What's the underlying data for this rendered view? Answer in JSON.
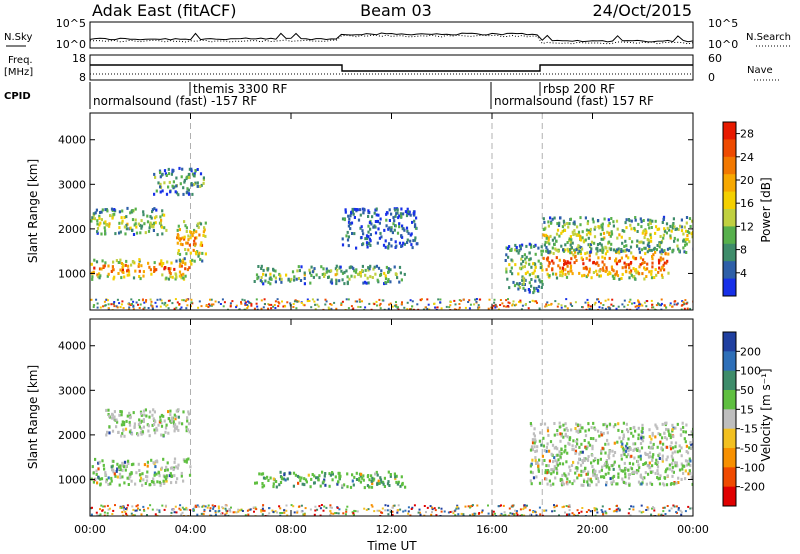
{
  "header": {
    "station": "Adak East (fitACF)",
    "beam": "Beam 03",
    "date": "24/Oct/2015"
  },
  "strips": {
    "nsky_label": "N.Sky",
    "nsearch_label": "N.Search",
    "freq_label_1": "Freq.",
    "freq_label_2": "[MHz]",
    "nave_label": "Nave",
    "cpid_label": "CPID",
    "nsky_ticks": [
      "10^5",
      "10^0"
    ],
    "nsearch_ticks": [
      "10^5",
      "10^0"
    ],
    "freq_ticks": [
      "18",
      "8"
    ],
    "nave_ticks": [
      "60",
      "0"
    ],
    "cpid_segments": [
      {
        "label": "normalsound (fast) -157 RF",
        "start": 0.0,
        "end": 15.9
      },
      {
        "label": "themis 3300 RF",
        "start": 4.0,
        "end": 15.9
      },
      {
        "label": "normalsound (fast) 157 RF",
        "start": 15.9,
        "end": 24.0
      },
      {
        "label": "rbsp 200 RF",
        "start": 18.0,
        "end": 24.0
      }
    ]
  },
  "chart_data": [
    {
      "type": "heatmap",
      "name": "power",
      "ylabel": "Slant Range [km]",
      "yticks": [
        "1000",
        "2000",
        "3000",
        "4000"
      ],
      "ylim": [
        180,
        4600
      ],
      "xlim": [
        0,
        24
      ],
      "colorbar_label": "Power [dB]",
      "colorbar_ticks": [
        "4",
        "8",
        "12",
        "16",
        "20",
        "24",
        "28"
      ],
      "colorscale": [
        "#1730e8",
        "#2e5fa8",
        "#3e8c6a",
        "#57b04c",
        "#c0d040",
        "#f4d000",
        "#f7a800",
        "#f27800",
        "#ee4a00",
        "#e81a00"
      ],
      "features": [
        {
          "t0": 0.0,
          "t1": 4.0,
          "r0": 900,
          "r1": 1350,
          "level": 0.85
        },
        {
          "t0": 3.4,
          "t1": 4.6,
          "r0": 1300,
          "r1": 2200,
          "level": 0.75
        },
        {
          "t0": 0.0,
          "t1": 3.0,
          "r0": 1900,
          "r1": 2500,
          "level": 0.5
        },
        {
          "t0": 2.5,
          "t1": 4.5,
          "r0": 2800,
          "r1": 3400,
          "level": 0.35
        },
        {
          "t0": 6.5,
          "t1": 12.5,
          "r0": 800,
          "r1": 1200,
          "level": 0.45
        },
        {
          "t0": 10.0,
          "t1": 13.0,
          "r0": 1600,
          "r1": 2500,
          "level": 0.2
        },
        {
          "t0": 16.5,
          "t1": 18.0,
          "r0": 600,
          "r1": 1700,
          "level": 0.45
        },
        {
          "t0": 18.0,
          "t1": 23.0,
          "r0": 900,
          "r1": 1600,
          "level": 0.9
        },
        {
          "t0": 18.0,
          "t1": 24.0,
          "r0": 1500,
          "r1": 2300,
          "level": 0.5
        }
      ]
    },
    {
      "type": "heatmap",
      "name": "velocity",
      "ylabel": "Slant Range [km]",
      "yticks": [
        "1000",
        "2000",
        "3000",
        "4000"
      ],
      "ylim": [
        180,
        4600
      ],
      "xlim": [
        0,
        24
      ],
      "xlabel": "Time UT",
      "xticks": [
        "00:00",
        "04:00",
        "08:00",
        "12:00",
        "16:00",
        "20:00",
        "00:00"
      ],
      "colorbar_label": "Velocity [m s⁻¹]",
      "colorbar_ticks": [
        "200",
        "100",
        "50",
        "15",
        "-15",
        "-50",
        "-100",
        "-200"
      ],
      "colorscale": [
        "#2040a0",
        "#2e6fb8",
        "#3e8c6a",
        "#5fbf40",
        "#bebebe",
        "#f2c020",
        "#f79000",
        "#f04a00",
        "#e00000"
      ],
      "features": [
        {
          "t0": 0.0,
          "t1": 4.0,
          "r0": 900,
          "r1": 1500,
          "level": 0.45
        },
        {
          "t0": 0.5,
          "t1": 4.0,
          "r0": 2000,
          "r1": 2600,
          "level": 0.45
        },
        {
          "t0": 6.5,
          "t1": 12.5,
          "r0": 850,
          "r1": 1200,
          "level": 0.35
        },
        {
          "t0": 17.5,
          "t1": 24.0,
          "r0": 900,
          "r1": 2300,
          "level": 0.45
        }
      ]
    }
  ]
}
